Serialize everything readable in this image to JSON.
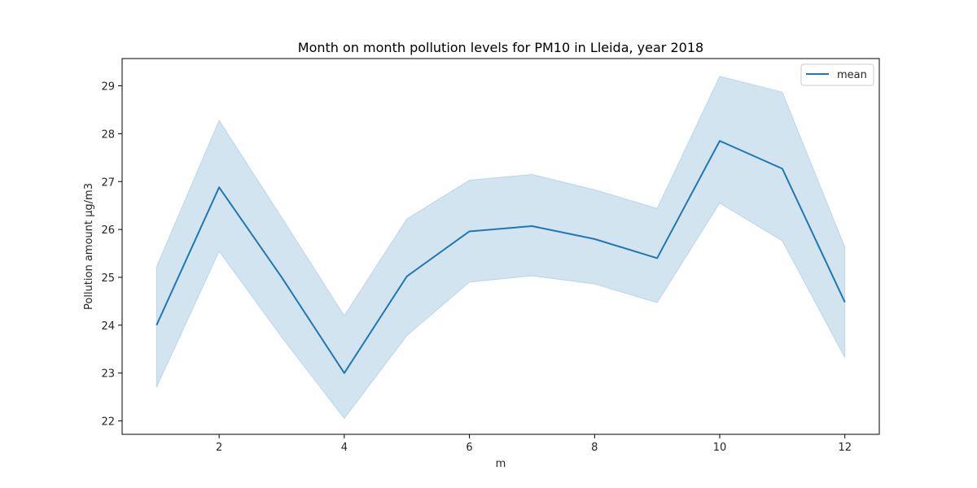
{
  "chart_data": {
    "type": "line",
    "title": "Month on month pollution levels for PM10 in Lleida, year 2018",
    "xlabel": "m",
    "ylabel": "Pollution amount µg/m3",
    "xlim": [
      0.45,
      12.55
    ],
    "ylim": [
      21.72,
      29.57
    ],
    "x_ticks": [
      2,
      4,
      6,
      8,
      10,
      12
    ],
    "y_ticks": [
      22,
      23,
      24,
      25,
      26,
      27,
      28,
      29
    ],
    "x": [
      1,
      2,
      3,
      4,
      5,
      6,
      7,
      8,
      9,
      10,
      11,
      12
    ],
    "series": [
      {
        "name": "mean",
        "values": [
          24.0,
          26.88,
          25.0,
          23.0,
          25.02,
          25.96,
          26.07,
          25.8,
          25.4,
          27.85,
          27.27,
          24.48
        ],
        "ci_lower": [
          22.7,
          25.54,
          23.75,
          22.05,
          23.78,
          24.9,
          25.03,
          24.86,
          24.47,
          26.55,
          25.76,
          23.32
        ],
        "ci_upper": [
          25.22,
          28.28,
          26.25,
          24.2,
          26.22,
          27.03,
          27.15,
          26.83,
          26.44,
          29.2,
          28.87,
          25.63
        ],
        "color": "#1f77b4",
        "band_color": "#1f77b4",
        "band_opacity": 0.2
      }
    ],
    "legend": {
      "position": "top-right",
      "entries": [
        "mean"
      ]
    },
    "grid": false
  }
}
